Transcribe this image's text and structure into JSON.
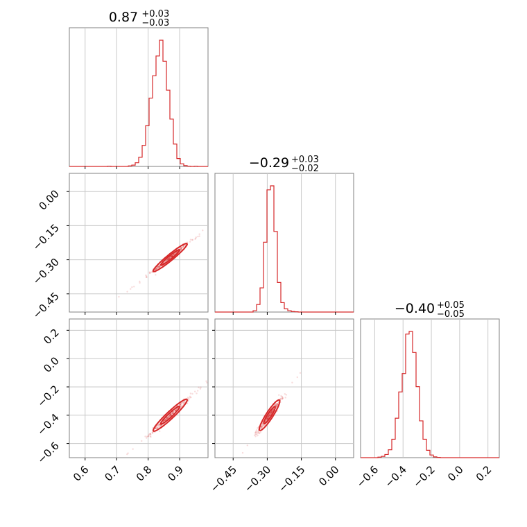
{
  "chart_data": {
    "type": "corner",
    "color": "#d62728",
    "grid": true,
    "parameters": [
      {
        "median": "0.87",
        "plus": "+0.03",
        "minus": "−0.03",
        "range": [
          0.55,
          0.99
        ],
        "ticks": [
          0.6,
          0.7,
          0.8,
          0.9
        ],
        "tick_labels": [
          "0.6",
          "0.7",
          "0.8",
          "0.9"
        ]
      },
      {
        "median": "−0.29",
        "plus": "+0.03",
        "minus": "−0.02",
        "range": [
          -0.53,
          0.08
        ],
        "ticks": [
          -0.45,
          -0.3,
          -0.15,
          0.0
        ],
        "tick_labels": [
          "−0.45",
          "−0.30",
          "−0.15",
          "0.00"
        ]
      },
      {
        "median": "−0.40",
        "plus": "+0.05",
        "minus": "−0.05",
        "range": [
          -0.7,
          0.28
        ],
        "ticks": [
          -0.6,
          -0.4,
          -0.2,
          0.0,
          0.2
        ],
        "tick_labels": [
          "−0.6",
          "−0.4",
          "−0.2",
          "0.0",
          "0.2"
        ]
      }
    ],
    "histograms": [
      {
        "param": 0,
        "edges": [
          0.55,
          0.99
        ],
        "counts": [
          0,
          0,
          0,
          0,
          0,
          0,
          0,
          0,
          0,
          0,
          0,
          1,
          0,
          0,
          0,
          0,
          0,
          2,
          5,
          14,
          35,
          80,
          155,
          260,
          345,
          420,
          480,
          400,
          290,
          180,
          85,
          30,
          10,
          3,
          1,
          0,
          1,
          0,
          0,
          0
        ]
      },
      {
        "param": 1,
        "edges": [
          -0.53,
          0.08
        ],
        "counts": [
          0,
          0,
          0,
          0,
          0,
          0,
          0,
          0,
          0,
          0,
          0,
          5,
          28,
          90,
          260,
          455,
          470,
          300,
          110,
          35,
          12,
          5,
          2,
          1,
          0,
          0,
          0,
          0,
          0,
          0,
          0,
          0,
          0,
          0,
          0,
          0,
          0,
          0,
          0,
          0
        ]
      },
      {
        "param": 2,
        "edges": [
          -0.7,
          0.28
        ],
        "counts": [
          0,
          0,
          0,
          0,
          0,
          2,
          5,
          12,
          30,
          70,
          150,
          250,
          320,
          470,
          480,
          400,
          270,
          140,
          70,
          28,
          10,
          3,
          1,
          0,
          0,
          0,
          0,
          0,
          0,
          0,
          0,
          0,
          0,
          0,
          0,
          0,
          0,
          0,
          0,
          0
        ]
      }
    ],
    "correlations": [
      {
        "x_param": 0,
        "y_param": 1,
        "slope": 1.1,
        "x_sd": 0.03,
        "resid_sd": 0.006
      },
      {
        "x_param": 0,
        "y_param": 2,
        "slope": 2.0,
        "x_sd": 0.03,
        "resid_sd": 0.012
      },
      {
        "x_param": 1,
        "y_param": 2,
        "slope": 2.2,
        "x_sd": 0.025,
        "resid_sd": 0.015
      }
    ],
    "title": "",
    "xlabel": "",
    "ylabel": ""
  }
}
